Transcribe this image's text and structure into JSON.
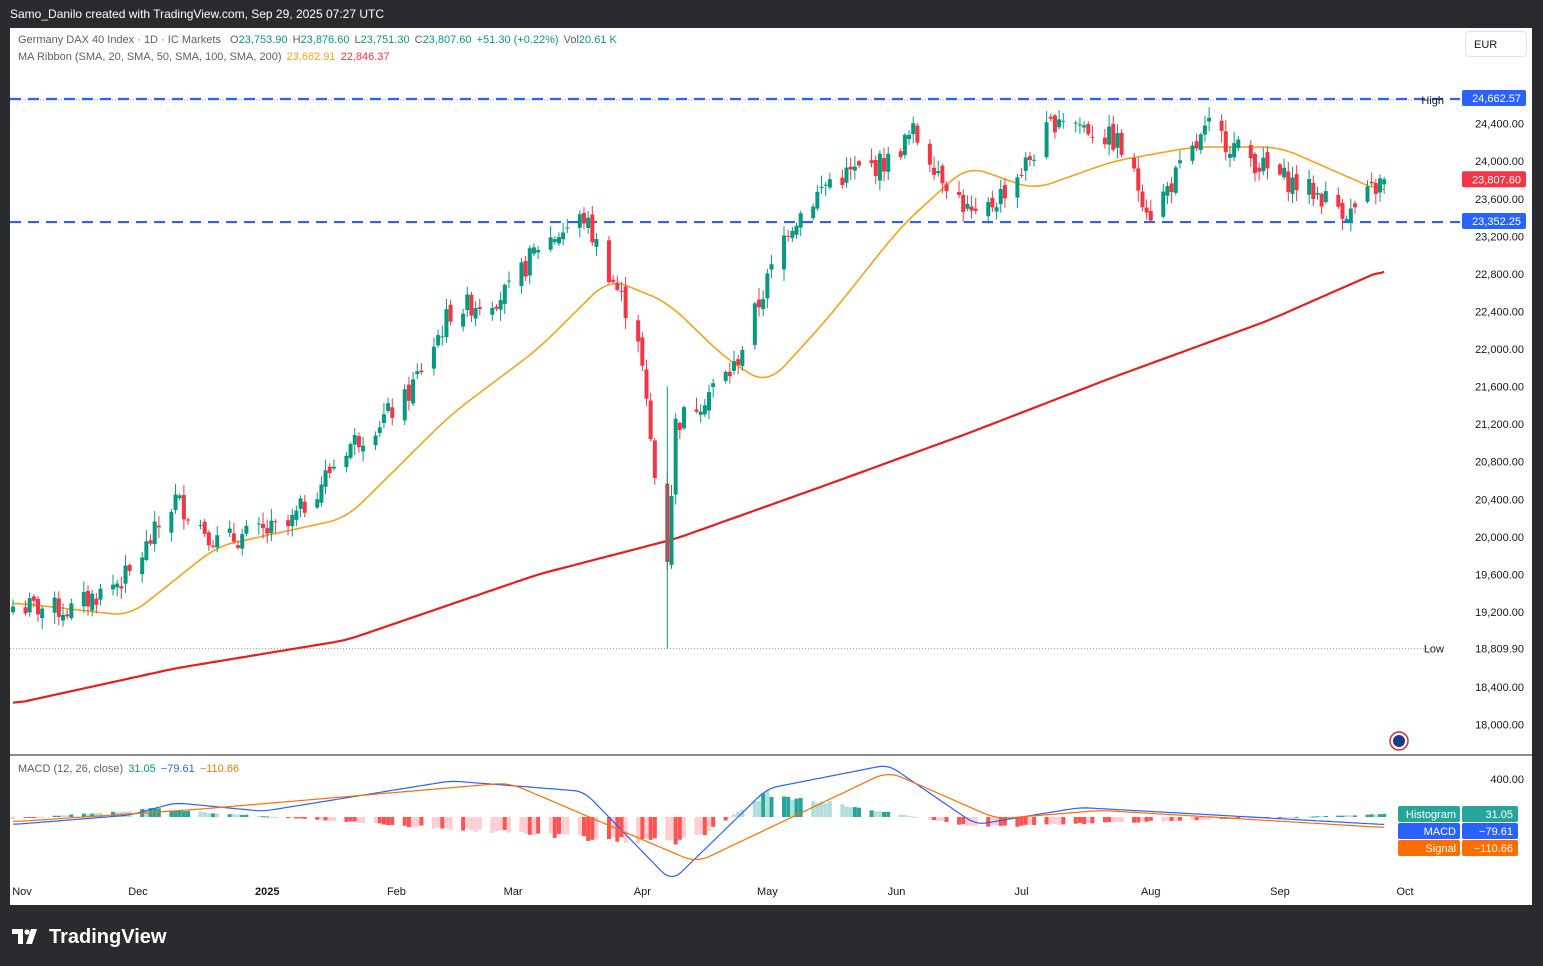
{
  "header": {
    "credit": "Samo_Danilo created with TradingView.com, Sep 29, 2025 07:27 UTC"
  },
  "legend": {
    "symbol": "Germany DAX 40 Index · 1D · IC Markets",
    "open_label": "O",
    "open": "23,753.90",
    "high_label": "H",
    "high": "23,876.60",
    "low_label": "L",
    "low": "23,751.30",
    "close_label": "C",
    "close": "23,807.60",
    "change": "+51.30 (+0.22%)",
    "vol_label": "Vol",
    "vol": "20.61 K",
    "ma_label": "MA Ribbon (SMA, 20, SMA, 50, SMA, 100, SMA, 200)",
    "ma50": "23,662.91",
    "ma200": "22,846.37",
    "macd_label": "MACD (12, 26, close)",
    "macd_hist": "31.05",
    "macd_line": "−79.61",
    "macd_signal": "−110.66"
  },
  "currency": "EUR",
  "price_axis": {
    "ticks": [
      "24,400.00",
      "24,000.00",
      "23,600.00",
      "23,200.00",
      "22,800.00",
      "22,400.00",
      "22,000.00",
      "21,600.00",
      "21,200.00",
      "20,800.00",
      "20,400.00",
      "20,000.00",
      "19,600.00",
      "19,200.00",
      "18,400.00",
      "18,000.00"
    ],
    "tick_values": [
      24400,
      24000,
      23600,
      23200,
      22800,
      22400,
      22000,
      21600,
      21200,
      20800,
      20400,
      20000,
      19600,
      19200,
      18400,
      18000
    ],
    "high_label": "High",
    "high_value": "24,653.10",
    "low_label": "Low",
    "low_value": "18,809.90",
    "resistance_tag": "24,662.57",
    "support_tag": "23,352.25",
    "last_price_tag": "23,807.60"
  },
  "macd_axis": {
    "tick": "400.00",
    "histogram_label": "Histogram",
    "histogram_value": "31.05",
    "macd_label": "MACD",
    "macd_value": "−79.61",
    "signal_label": "Signal",
    "signal_value": "−110.66"
  },
  "time_axis": {
    "labels": [
      "Nov",
      "Dec",
      "2025",
      "Feb",
      "Mar",
      "Apr",
      "May",
      "Jun",
      "Jul",
      "Aug",
      "Sep",
      "Oct"
    ]
  },
  "footer": {
    "brand": "TradingView",
    "logo_icon": "tradingview-logo-icon"
  },
  "colors": {
    "up": "#089981",
    "down": "#f23645",
    "ma50": "#f7a21b",
    "ma200": "#e61e1e",
    "level_line": "#2962ff",
    "macd_line": "#2962ff",
    "signal_line": "#ff6d00"
  },
  "chart_data": [
    {
      "type": "candlestick",
      "title": "Germany DAX 40 Index · 1D · IC Markets",
      "y_range": [
        17800,
        24900
      ],
      "horizontal_levels": [
        24662.57,
        23352.25
      ],
      "high": 24653.1,
      "low": 18809.9,
      "key_closes": [
        {
          "x": "2024-11-01",
          "y": 19260
        },
        {
          "x": "2024-11-15",
          "y": 19220
        },
        {
          "x": "2024-11-29",
          "y": 19600
        },
        {
          "x": "2024-12-10",
          "y": 20400
        },
        {
          "x": "2024-12-20",
          "y": 19950
        },
        {
          "x": "2025-01-06",
          "y": 20100
        },
        {
          "x": "2025-01-20",
          "y": 20950
        },
        {
          "x": "2025-02-03",
          "y": 21450
        },
        {
          "x": "2025-02-14",
          "y": 22400
        },
        {
          "x": "2025-02-28",
          "y": 22600
        },
        {
          "x": "2025-03-07",
          "y": 23100
        },
        {
          "x": "2025-03-18",
          "y": 23400
        },
        {
          "x": "2025-03-31",
          "y": 22150
        },
        {
          "x": "2025-04-04",
          "y": 20640
        },
        {
          "x": "2025-04-07",
          "y": 19800
        },
        {
          "x": "2025-04-09",
          "y": 21200
        },
        {
          "x": "2025-04-23",
          "y": 21800
        },
        {
          "x": "2025-05-06",
          "y": 23300
        },
        {
          "x": "2025-05-16",
          "y": 23800
        },
        {
          "x": "2025-05-30",
          "y": 24000
        },
        {
          "x": "2025-06-05",
          "y": 24300
        },
        {
          "x": "2025-06-20",
          "y": 23350
        },
        {
          "x": "2025-07-01",
          "y": 23900
        },
        {
          "x": "2025-07-10",
          "y": 24500
        },
        {
          "x": "2025-07-24",
          "y": 24200
        },
        {
          "x": "2025-08-01",
          "y": 23450
        },
        {
          "x": "2025-08-15",
          "y": 24350
        },
        {
          "x": "2025-08-29",
          "y": 23900
        },
        {
          "x": "2025-09-10",
          "y": 23650
        },
        {
          "x": "2025-09-18",
          "y": 23450
        },
        {
          "x": "2025-09-26",
          "y": 23807.6
        }
      ],
      "series": [
        {
          "name": "SMA 50",
          "values": [
            {
              "x": "2024-11-01",
              "y": 19300
            },
            {
              "x": "2024-11-29",
              "y": 19160
            },
            {
              "x": "2024-12-20",
              "y": 19900
            },
            {
              "x": "2025-01-20",
              "y": 20200
            },
            {
              "x": "2025-02-14",
              "y": 21300
            },
            {
              "x": "2025-03-07",
              "y": 22000
            },
            {
              "x": "2025-03-24",
              "y": 22750
            },
            {
              "x": "2025-04-07",
              "y": 22500
            },
            {
              "x": "2025-04-21",
              "y": 21900
            },
            {
              "x": "2025-05-01",
              "y": 21620
            },
            {
              "x": "2025-05-15",
              "y": 22300
            },
            {
              "x": "2025-06-02",
              "y": 23300
            },
            {
              "x": "2025-06-18",
              "y": 23950
            },
            {
              "x": "2025-07-04",
              "y": 23700
            },
            {
              "x": "2025-07-23",
              "y": 24000
            },
            {
              "x": "2025-08-11",
              "y": 24150
            },
            {
              "x": "2025-09-01",
              "y": 24150
            },
            {
              "x": "2025-09-26",
              "y": 23662.91
            }
          ]
        },
        {
          "name": "SMA 200",
          "values": [
            {
              "x": "2024-11-01",
              "y": 18220
            },
            {
              "x": "2024-12-10",
              "y": 18600
            },
            {
              "x": "2025-01-20",
              "y": 18900
            },
            {
              "x": "2025-03-07",
              "y": 19600
            },
            {
              "x": "2025-04-09",
              "y": 19980
            },
            {
              "x": "2025-05-15",
              "y": 20550
            },
            {
              "x": "2025-06-18",
              "y": 21100
            },
            {
              "x": "2025-07-23",
              "y": 21700
            },
            {
              "x": "2025-08-29",
              "y": 22300
            },
            {
              "x": "2025-09-26",
              "y": 22846.37
            }
          ]
        }
      ]
    },
    {
      "type": "line",
      "title": "MACD (12, 26, close)",
      "y_tick": 400,
      "series": [
        {
          "name": "MACD",
          "values": [
            {
              "x": "2024-11-01",
              "y": -79
            },
            {
              "x": "2024-11-29",
              "y": 20
            },
            {
              "x": "2024-12-10",
              "y": 150
            },
            {
              "x": "2024-12-31",
              "y": 60
            },
            {
              "x": "2025-02-14",
              "y": 380
            },
            {
              "x": "2025-03-18",
              "y": 270
            },
            {
              "x": "2025-04-08",
              "y": -680
            },
            {
              "x": "2025-05-01",
              "y": 300
            },
            {
              "x": "2025-05-30",
              "y": 550
            },
            {
              "x": "2025-06-20",
              "y": -80
            },
            {
              "x": "2025-07-15",
              "y": 100
            },
            {
              "x": "2025-08-29",
              "y": -10
            },
            {
              "x": "2025-09-26",
              "y": -79.61
            }
          ]
        },
        {
          "name": "Signal",
          "values": [
            {
              "x": "2024-11-01",
              "y": -50
            },
            {
              "x": "2024-12-15",
              "y": 80
            },
            {
              "x": "2025-02-28",
              "y": 360
            },
            {
              "x": "2025-04-14",
              "y": -480
            },
            {
              "x": "2025-05-30",
              "y": 480
            },
            {
              "x": "2025-06-25",
              "y": -20
            },
            {
              "x": "2025-07-20",
              "y": 70
            },
            {
              "x": "2025-09-26",
              "y": -110.66
            }
          ]
        },
        {
          "name": "Histogram",
          "values": [
            {
              "x": "2024-12-05",
              "y": 90
            },
            {
              "x": "2025-04-07",
              "y": -290
            },
            {
              "x": "2025-04-16",
              "y": -190
            },
            {
              "x": "2025-05-01",
              "y": 270
            },
            {
              "x": "2025-06-20",
              "y": -110
            },
            {
              "x": "2025-09-26",
              "y": 31.05
            }
          ]
        }
      ]
    }
  ]
}
